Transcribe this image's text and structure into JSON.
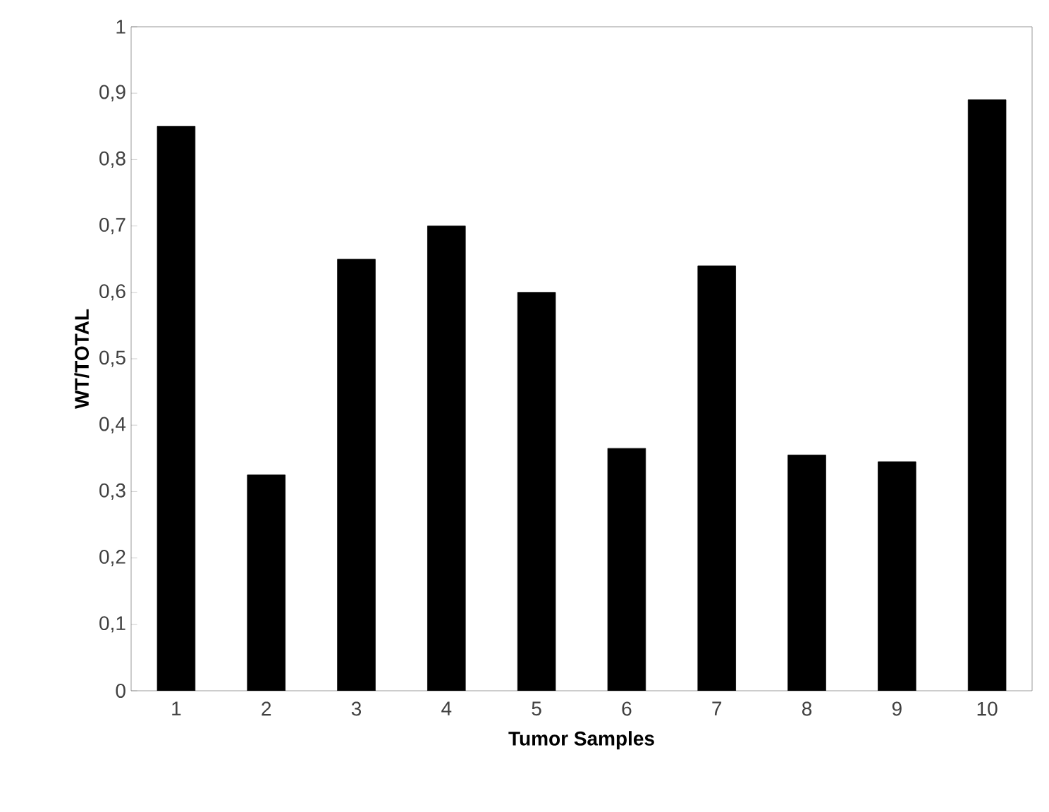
{
  "chart_data": {
    "type": "bar",
    "xlabel": "Tumor Samples",
    "ylabel": "WT/TOTAL",
    "categories": [
      "1",
      "2",
      "3",
      "4",
      "5",
      "6",
      "7",
      "8",
      "9",
      "10"
    ],
    "values": [
      0.85,
      0.325,
      0.65,
      0.7,
      0.6,
      0.365,
      0.64,
      0.355,
      0.345,
      0.89
    ],
    "color": "#000000",
    "ylim": [
      0,
      1
    ],
    "yticks": [
      0,
      {
        "value": 0.1,
        "label": "0,1"
      },
      {
        "value": 0.2,
        "label": "0,2"
      },
      {
        "value": 0.3,
        "label": "0,3"
      },
      {
        "value": 0.4,
        "label": "0,4"
      },
      {
        "value": 0.5,
        "label": "0,5"
      },
      {
        "value": 0.6,
        "label": "0,6"
      },
      {
        "value": 0.7,
        "label": "0,7"
      },
      {
        "value": 0.8,
        "label": "0,8"
      },
      {
        "value": 0.9,
        "label": "0,9"
      },
      1
    ]
  }
}
